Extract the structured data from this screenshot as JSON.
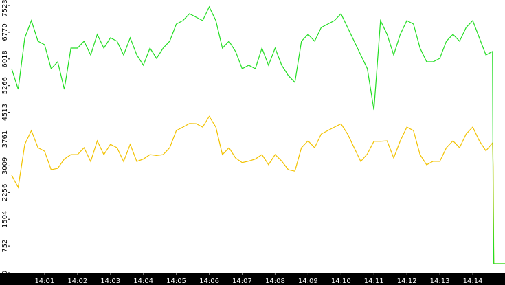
{
  "chart_data": {
    "type": "line",
    "x": [
      0,
      0.2,
      0.4,
      0.6,
      0.8,
      1.0,
      1.2,
      1.4,
      1.6,
      1.8,
      2.0,
      2.2,
      2.4,
      2.6,
      2.8,
      3.0,
      3.2,
      3.4,
      3.6,
      3.8,
      4.0,
      4.2,
      4.4,
      4.6,
      4.8,
      5.0,
      5.2,
      5.4,
      5.6,
      5.8,
      6.0,
      6.2,
      6.4,
      6.6,
      6.8,
      7.0,
      7.2,
      7.4,
      7.6,
      7.8,
      8.0,
      8.2,
      8.4,
      8.6,
      8.8,
      9.0,
      9.2,
      9.4,
      9.6,
      9.8,
      10.0,
      10.2,
      10.4,
      10.6,
      10.8,
      11.0,
      11.2,
      11.4,
      11.6,
      11.8,
      12.0,
      12.2,
      12.4,
      12.6,
      12.8,
      13.0,
      13.2,
      13.4,
      13.6,
      13.8,
      14.0,
      14.2,
      14.4,
      14.6,
      14.62,
      14.64,
      14.98
    ],
    "series": [
      {
        "color": "#22dd22",
        "values": [
          5744,
          5164,
          6614,
          7098,
          6518,
          6421,
          5744,
          5938,
          5164,
          6324,
          6324,
          6518,
          6131,
          6711,
          6324,
          6614,
          6518,
          6131,
          6614,
          6131,
          5841,
          6324,
          6034,
          6324,
          6518,
          7001,
          7098,
          7291,
          7194,
          7098,
          7485,
          7098,
          6324,
          6518,
          6228,
          5744,
          5841,
          5744,
          6324,
          5841,
          6324,
          5841,
          5551,
          5358,
          6518,
          6711,
          6518,
          6904,
          7001,
          7098,
          7291,
          6904,
          6518,
          6131,
          5744,
          4583,
          7098,
          6711,
          6131,
          6711,
          7098,
          7001,
          6324,
          5938,
          5938,
          6034,
          6518,
          6711,
          6518,
          6904,
          7098,
          6614,
          6131,
          6228,
          1876,
          251,
          251
        ]
      },
      {
        "color": "#f2c200",
        "values": [
          2744,
          2400,
          3614,
          4000,
          3518,
          3421,
          2900,
          2938,
          3200,
          3324,
          3324,
          3518,
          3131,
          3711,
          3324,
          3614,
          3518,
          3131,
          3614,
          3131,
          3200,
          3324,
          3300,
          3324,
          3518,
          4001,
          4098,
          4200,
          4194,
          4098,
          4400,
          4098,
          3324,
          3518,
          3228,
          3100,
          3141,
          3200,
          3324,
          3041,
          3324,
          3141,
          2900,
          2858,
          3518,
          3711,
          3518,
          3904,
          4001,
          4098,
          4191,
          3904,
          3518,
          3131,
          3344,
          3700,
          3698,
          3711,
          3231,
          3711,
          4098,
          4001,
          3324,
          3038,
          3138,
          3134,
          3518,
          3711,
          3518,
          3904,
          4098,
          3714,
          3431,
          3650,
          3000,
          251,
          251
        ]
      }
    ],
    "xlim": [
      -0.04,
      14.98
    ],
    "xticks": [
      {
        "value": 1,
        "label": "14:01"
      },
      {
        "value": 2,
        "label": "14:02"
      },
      {
        "value": 3,
        "label": "14:03"
      },
      {
        "value": 4,
        "label": "14:04"
      },
      {
        "value": 5,
        "label": "14:05"
      },
      {
        "value": 6,
        "label": "14:06"
      },
      {
        "value": 7,
        "label": "14:07"
      },
      {
        "value": 8,
        "label": "14:08"
      },
      {
        "value": 9,
        "label": "14:09"
      },
      {
        "value": 10,
        "label": "14:10"
      },
      {
        "value": 11,
        "label": "14:11"
      },
      {
        "value": 12,
        "label": "14:12"
      },
      {
        "value": 13,
        "label": "14:13"
      },
      {
        "value": 14,
        "label": "14:14"
      }
    ],
    "ylim": [
      0,
      7523
    ],
    "yticks": [
      0,
      752,
      1504,
      2256,
      3009,
      3761,
      4513,
      5266,
      6018,
      6770,
      7523
    ]
  }
}
